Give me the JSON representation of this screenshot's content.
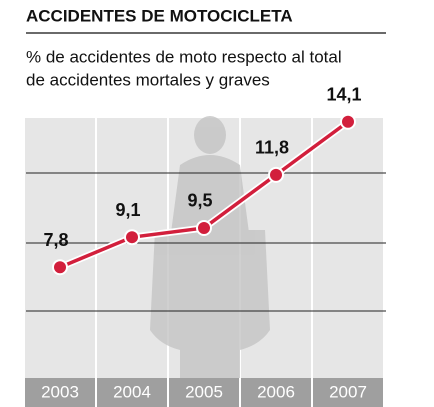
{
  "chart_data": {
    "type": "line",
    "title": "ACCIDENTES DE MOTOCICLETA",
    "subtitle": [
      "% de accidentes de moto respecto al total",
      "de accidentes mortales y graves"
    ],
    "categories": [
      "2003",
      "2004",
      "2005",
      "2006",
      "2007"
    ],
    "values": [
      7.8,
      9.1,
      9.5,
      11.8,
      14.1
    ],
    "value_labels": [
      "7,8",
      "9,1",
      "9,5",
      "11,8",
      "14,1"
    ],
    "color": "#d21f3c",
    "ylim": [
      3,
      15
    ]
  }
}
